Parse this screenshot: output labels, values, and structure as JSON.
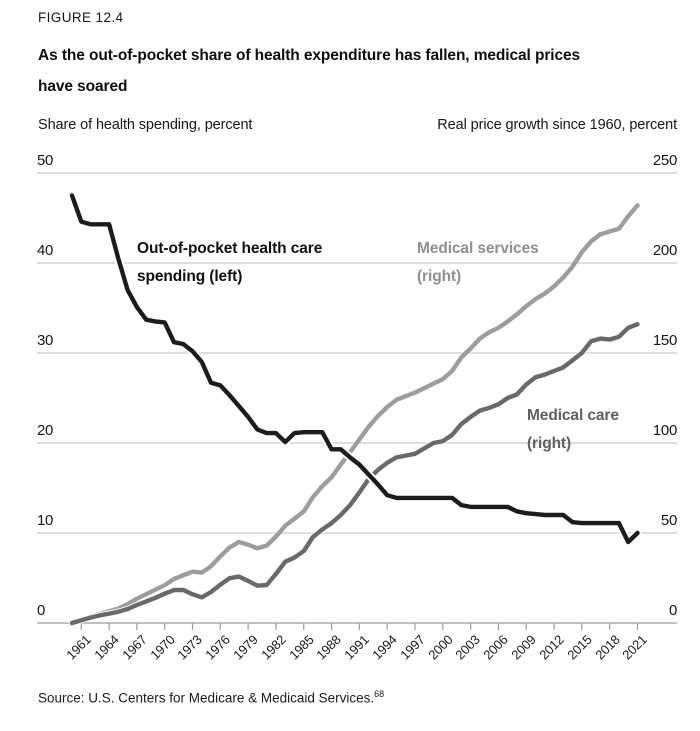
{
  "figure_label": "FIGURE 12.4",
  "title_lines": [
    "As the out-of-pocket share of health expenditure has fallen, medical prices",
    "have soared"
  ],
  "axes": {
    "left_header": "Share of health spending, percent",
    "right_header": "Real price growth since 1960, percent"
  },
  "series_labels": {
    "oop": [
      "Out-of-pocket health care",
      "spending (left)"
    ],
    "services": [
      "Medical services",
      "(right)"
    ],
    "care": [
      "Medical care",
      "(right)"
    ]
  },
  "source": {
    "text": "Source: U.S. Centers for Medicare & Medicaid Services.",
    "footnote_marker": "68"
  },
  "colors": {
    "oop_line": "#1c1c1c",
    "services_line": "#9d9d9d",
    "care_line": "#696969",
    "services_label": "#8f8f8f",
    "care_label": "#5f5f5f",
    "gridline": "#cbcbcb",
    "axis_line": "#9b9b9b",
    "text": "#1a1a1a"
  },
  "chart_data": {
    "type": "line",
    "title": "As the out-of-pocket share of health expenditure has fallen, medical prices have soared",
    "x_year_start": 1960,
    "x_year_end": 2021,
    "x_tick_years": [
      1961,
      1964,
      1967,
      1970,
      1973,
      1976,
      1979,
      1982,
      1985,
      1988,
      1991,
      1994,
      1997,
      2000,
      2003,
      2006,
      2009,
      2012,
      2015,
      2018,
      2021
    ],
    "left_axis": {
      "label": "Share of health spending, percent",
      "range": [
        0,
        50
      ],
      "ticks": [
        50,
        40,
        30,
        20,
        10,
        0
      ]
    },
    "right_axis": {
      "label": "Real price growth since 1960, percent",
      "range": [
        0,
        250
      ],
      "ticks": [
        250,
        200,
        150,
        100,
        50,
        0
      ]
    },
    "grid": true,
    "legend_position": "inline-annotations",
    "series": [
      {
        "name": "Out-of-pocket health care spending",
        "axis": "left",
        "values": [
          47.5,
          44.6,
          44.3,
          44.3,
          44.3,
          40.5,
          37.0,
          35.1,
          33.7,
          33.5,
          33.4,
          31.2,
          31.0,
          30.2,
          29.0,
          26.7,
          26.4,
          25.3,
          24.1,
          22.9,
          21.5,
          21.1,
          21.1,
          20.1,
          21.1,
          21.2,
          21.2,
          21.2,
          19.3,
          19.3,
          18.4,
          17.6,
          16.5,
          15.4,
          14.2,
          13.9,
          13.9,
          13.9,
          13.9,
          13.9,
          13.9,
          13.9,
          13.1,
          12.9,
          12.9,
          12.9,
          12.9,
          12.9,
          12.4,
          12.2,
          12.1,
          12.0,
          12.0,
          12.0,
          11.2,
          11.1,
          11.1,
          11.1,
          11.1,
          11.1,
          9.0,
          10.0
        ]
      },
      {
        "name": "Medical services",
        "axis": "right",
        "values": [
          0,
          2.0,
          3.5,
          5.0,
          6.5,
          8.0,
          10.5,
          13.5,
          16.0,
          18.5,
          21.0,
          24.5,
          26.5,
          28.5,
          28.0,
          31.5,
          37.0,
          42.0,
          45.0,
          43.5,
          41.5,
          43.0,
          48.0,
          54.0,
          58.0,
          62.0,
          70.0,
          76.0,
          81.0,
          88.0,
          95.0,
          102.0,
          109.0,
          115.0,
          120.0,
          124.0,
          126.0,
          128.0,
          130.5,
          133.0,
          135.5,
          140.0,
          147.5,
          152.5,
          158.0,
          161.5,
          164.0,
          167.5,
          171.5,
          176.0,
          180.0,
          183.0,
          187.0,
          192.0,
          198.0,
          206.0,
          212.0,
          216.0,
          217.5,
          219.0,
          226.0,
          232.0
        ]
      },
      {
        "name": "Medical care",
        "axis": "right",
        "values": [
          0,
          1.5,
          3.0,
          4.2,
          5.2,
          6.2,
          7.8,
          10.0,
          12.0,
          14.0,
          16.3,
          18.3,
          18.4,
          16.0,
          14.2,
          17.2,
          21.3,
          24.9,
          25.8,
          23.4,
          20.7,
          21.1,
          27.2,
          34.0,
          36.4,
          40.0,
          47.8,
          52.0,
          55.5,
          60.0,
          65.5,
          72.5,
          80.0,
          85.0,
          89.0,
          92.0,
          93.0,
          94.0,
          97.0,
          100.0,
          101.0,
          104.5,
          110.5,
          114.5,
          118.0,
          119.5,
          121.5,
          125.0,
          127.0,
          132.5,
          136.5,
          138.0,
          140.0,
          142.0,
          146.0,
          150.0,
          156.5,
          158.0,
          157.5,
          159.0,
          164.0,
          166.0
        ]
      }
    ]
  }
}
